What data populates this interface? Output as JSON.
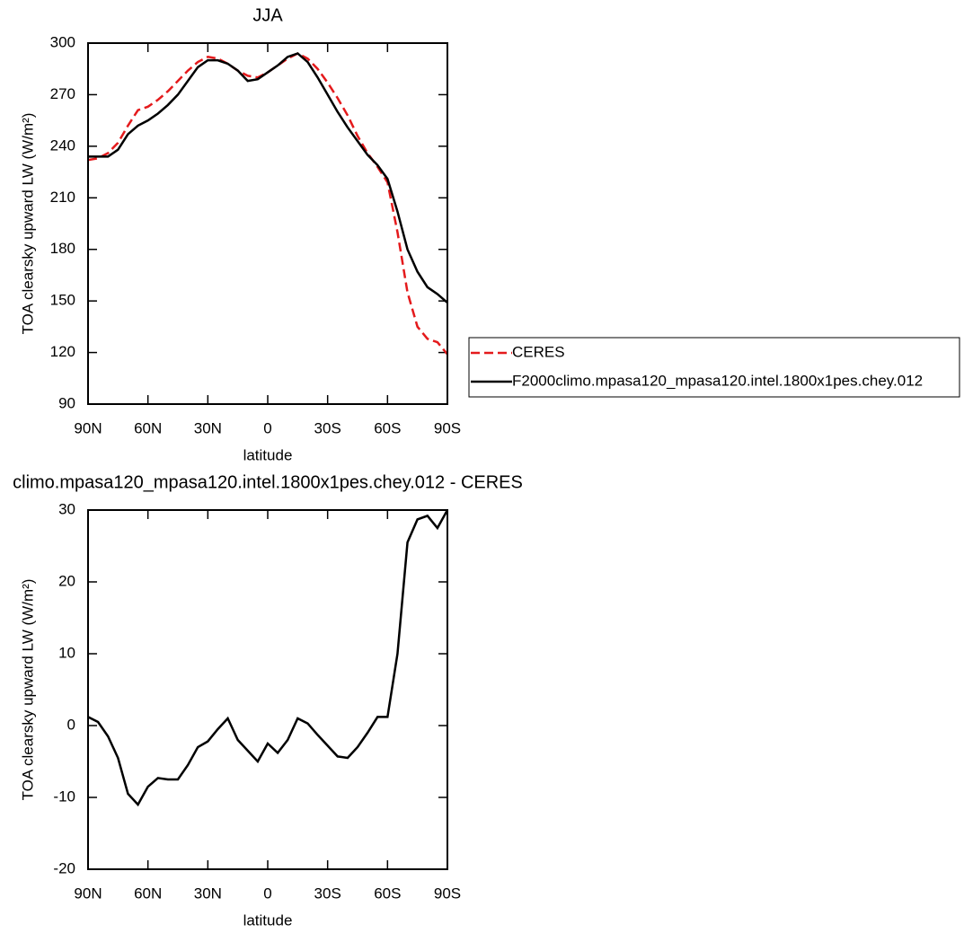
{
  "chart_data": [
    {
      "type": "line",
      "title": "JJA",
      "xlabel": "latitude",
      "ylabel": "TOA clearsky upward LW (W/m²)",
      "x": [
        90,
        85,
        80,
        75,
        70,
        65,
        60,
        55,
        50,
        45,
        40,
        35,
        30,
        25,
        20,
        15,
        10,
        5,
        0,
        -5,
        -10,
        -15,
        -20,
        -25,
        -30,
        -35,
        -40,
        -45,
        -50,
        -55,
        -60,
        -65,
        -70,
        -75,
        -80,
        -85,
        -90
      ],
      "xlim": [
        90,
        -90
      ],
      "xticks": [
        {
          "value": 90,
          "label": "90N"
        },
        {
          "value": 60,
          "label": "60N"
        },
        {
          "value": 30,
          "label": "30N"
        },
        0,
        {
          "value": -30,
          "label": "30S"
        },
        {
          "value": -60,
          "label": "60S"
        },
        {
          "value": -90,
          "label": "90S"
        }
      ],
      "ylim": [
        90,
        300
      ],
      "yticks": [
        90,
        120,
        150,
        180,
        210,
        240,
        270,
        300
      ],
      "legend": "right",
      "series": [
        {
          "name": "CERES",
          "color": "#e41a1c",
          "linestyle": "dashed",
          "values": [
            232,
            233,
            236,
            242,
            252,
            261,
            263,
            267,
            272,
            278,
            284,
            289,
            292,
            291,
            288,
            284,
            281,
            280,
            283,
            287,
            291,
            294,
            291,
            285,
            277,
            268,
            258,
            246,
            236,
            228,
            219,
            190,
            155,
            135,
            128,
            126,
            119
          ]
        },
        {
          "name": "F2000climo.mpasa120_mpasa120.intel.1800x1pes.chey.012",
          "color": "#000000",
          "linestyle": "solid",
          "values": [
            234,
            234,
            234,
            238,
            247,
            252,
            255,
            259,
            264,
            270,
            278,
            286,
            290,
            290,
            288,
            284,
            278,
            279,
            283,
            287,
            292,
            294,
            289,
            280,
            270,
            260,
            251,
            243,
            235,
            229,
            221,
            202,
            180,
            167,
            158,
            154,
            149
          ]
        }
      ]
    },
    {
      "type": "line",
      "title": "climo.mpasa120_mpasa120.intel.1800x1pes.chey.012 - CERES",
      "xlabel": "latitude",
      "ylabel": "TOA clearsky upward LW (W/m²)",
      "x": [
        90,
        85,
        80,
        75,
        70,
        65,
        60,
        55,
        50,
        45,
        40,
        35,
        30,
        25,
        20,
        15,
        10,
        5,
        0,
        -5,
        -10,
        -15,
        -20,
        -25,
        -30,
        -35,
        -40,
        -45,
        -50,
        -55,
        -60,
        -65,
        -70,
        -75,
        -80,
        -85,
        -90
      ],
      "xlim": [
        90,
        -90
      ],
      "xticks": [
        {
          "value": 90,
          "label": "90N"
        },
        {
          "value": 60,
          "label": "60N"
        },
        {
          "value": 30,
          "label": "30N"
        },
        0,
        {
          "value": -30,
          "label": "30S"
        },
        {
          "value": -60,
          "label": "60S"
        },
        {
          "value": -90,
          "label": "90S"
        }
      ],
      "ylim": [
        -20,
        30
      ],
      "yticks": [
        -20,
        -10,
        0,
        10,
        20,
        30
      ],
      "series": [
        {
          "color": "#000000",
          "linestyle": "solid",
          "values": [
            1.2,
            0.5,
            -1.5,
            -4.5,
            -9.5,
            -11,
            -8.5,
            -7.3,
            -7.5,
            -7.5,
            -5.5,
            -3,
            -2.2,
            -0.5,
            1,
            -2,
            -3.5,
            -5,
            -2.5,
            -3.8,
            -2,
            1,
            0.3,
            -1.3,
            -2.8,
            -4.3,
            -4.5,
            -3,
            -1,
            1.2,
            1.2,
            10,
            25.5,
            28.7,
            29.2,
            27.5,
            30
          ]
        }
      ]
    }
  ]
}
